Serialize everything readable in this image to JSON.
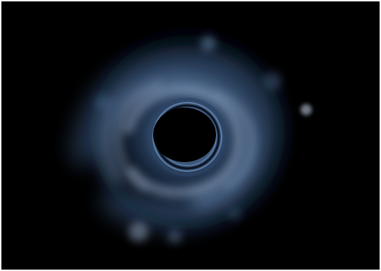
{
  "image": {
    "background_color": "#000000",
    "border_color": "#ffffff",
    "tint_color": "#9fc6ff",
    "mid_color": "#3c5f8f",
    "dark_color": "#07101d"
  }
}
